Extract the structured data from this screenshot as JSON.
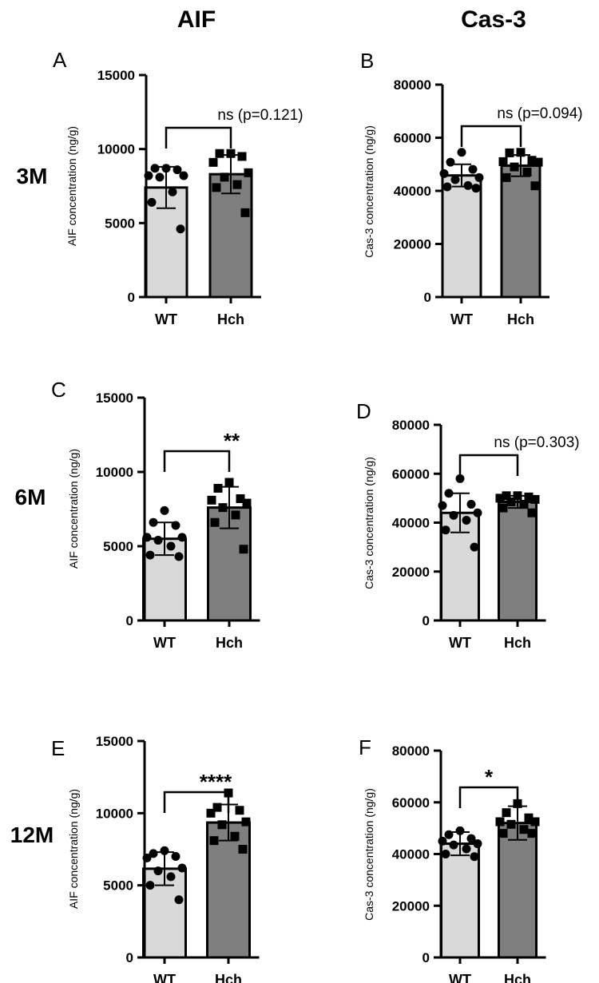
{
  "headers": {
    "col1": "AIF",
    "col2": "Cas-3"
  },
  "rows": [
    "3M",
    "6M",
    "12M"
  ],
  "colors": {
    "wt_fill": "#d9d9d9",
    "hch_fill": "#7f7f7f",
    "axis": "#000000",
    "point": "#000000"
  },
  "chart_data": [
    {
      "panel": "A",
      "type": "bar",
      "title": "",
      "xlabel": "",
      "ylabel": "AIF concentration (ng/g)",
      "ylim": [
        0,
        15000
      ],
      "yticks": [
        0,
        5000,
        10000,
        15000
      ],
      "ytick_labels": [
        "0",
        "5000",
        "10000",
        "15000"
      ],
      "categories": [
        "WT",
        "Hch"
      ],
      "values": [
        7400,
        8300
      ],
      "sd": [
        1400,
        1300
      ],
      "points": [
        [
          8700,
          8700,
          8600,
          8200,
          8200,
          8100,
          7100,
          6400,
          4600
        ],
        [
          9700,
          9700,
          9500,
          9100,
          8400,
          8100,
          7600,
          7400,
          5700
        ]
      ],
      "markers": [
        "circle",
        "square"
      ],
      "annotation": "ns (p=0.121)"
    },
    {
      "panel": "B",
      "type": "bar",
      "title": "",
      "xlabel": "",
      "ylabel": "Cas-3 concentration (ng/g)",
      "ylim": [
        0,
        80000
      ],
      "yticks": [
        0,
        20000,
        40000,
        60000,
        80000
      ],
      "ytick_labels": [
        "0",
        "20000",
        "40000",
        "60000",
        "80000"
      ],
      "categories": [
        "WT",
        "Hch"
      ],
      "values": [
        45800,
        49500
      ],
      "sd": [
        4200,
        4000
      ],
      "points": [
        [
          54500,
          50800,
          48100,
          46500,
          45000,
          44200,
          42000,
          41500,
          41000
        ],
        [
          54500,
          54300,
          51500,
          51000,
          50800,
          49000,
          47100,
          45000,
          41900
        ]
      ],
      "markers": [
        "circle",
        "square"
      ],
      "annotation": "ns (p=0.094)"
    },
    {
      "panel": "C",
      "type": "bar",
      "title": "",
      "xlabel": "",
      "ylabel": "AIF concentration (ng/g)",
      "ylim": [
        0,
        15000
      ],
      "yticks": [
        0,
        5000,
        10000,
        15000
      ],
      "ytick_labels": [
        "0",
        "5000",
        "10000",
        "15000"
      ],
      "categories": [
        "WT",
        "Hch"
      ],
      "values": [
        5500,
        7600
      ],
      "sd": [
        1100,
        1400
      ],
      "points": [
        [
          7400,
          6600,
          6400,
          5600,
          5600,
          5400,
          5000,
          4400,
          4300
        ],
        [
          9300,
          8900,
          8200,
          8100,
          7900,
          7600,
          7100,
          6600,
          4800
        ]
      ],
      "markers": [
        "circle",
        "square"
      ],
      "annotation": "**"
    },
    {
      "panel": "D",
      "type": "bar",
      "title": "",
      "xlabel": "",
      "ylabel": "Cas-3 concentration (ng/g)",
      "ylim": [
        0,
        80000
      ],
      "yticks": [
        0,
        20000,
        40000,
        60000,
        80000
      ],
      "ytick_labels": [
        "0",
        "20000",
        "40000",
        "60000",
        "80000"
      ],
      "categories": [
        "WT",
        "Hch"
      ],
      "values": [
        44000,
        48500
      ],
      "sd": [
        8000,
        2500
      ],
      "points": [
        [
          58000,
          52000,
          47500,
          47000,
          44000,
          43000,
          41000,
          37000,
          30000
        ],
        [
          51000,
          51000,
          50500,
          50000,
          49500,
          48500,
          47500,
          46000,
          44000
        ]
      ],
      "markers": [
        "circle",
        "square"
      ],
      "annotation": "ns (p=0.303)"
    },
    {
      "panel": "E",
      "type": "bar",
      "title": "",
      "xlabel": "",
      "ylabel": "AIF concentration (ng/g)",
      "ylim": [
        0,
        15000
      ],
      "yticks": [
        0,
        5000,
        10000,
        15000
      ],
      "ytick_labels": [
        "0",
        "5000",
        "10000",
        "15000"
      ],
      "categories": [
        "WT",
        "Hch"
      ],
      "values": [
        6150,
        9350
      ],
      "sd": [
        1150,
        1250
      ],
      "points": [
        [
          7400,
          7200,
          7000,
          6900,
          6200,
          6000,
          5600,
          5000,
          4000
        ],
        [
          11400,
          10400,
          10200,
          10000,
          9400,
          9200,
          8400,
          8100,
          7500
        ]
      ],
      "markers": [
        "circle",
        "square"
      ],
      "annotation": "****"
    },
    {
      "panel": "F",
      "type": "bar",
      "title": "",
      "xlabel": "",
      "ylabel": "Cas-3 concentration (ng/g)",
      "ylim": [
        0,
        80000
      ],
      "yticks": [
        0,
        20000,
        40000,
        60000,
        80000
      ],
      "ytick_labels": [
        "0",
        "20000",
        "40000",
        "60000",
        "80000"
      ],
      "categories": [
        "WT",
        "Hch"
      ],
      "values": [
        44000,
        52000
      ],
      "sd": [
        4500,
        6500
      ],
      "points": [
        [
          49000,
          47500,
          46000,
          45000,
          44000,
          43500,
          42000,
          40000,
          39000
        ],
        [
          59500,
          56000,
          54000,
          52500,
          52500,
          51500,
          49500,
          48000,
          48000
        ]
      ],
      "markers": [
        "circle",
        "square"
      ],
      "annotation": "*"
    }
  ]
}
